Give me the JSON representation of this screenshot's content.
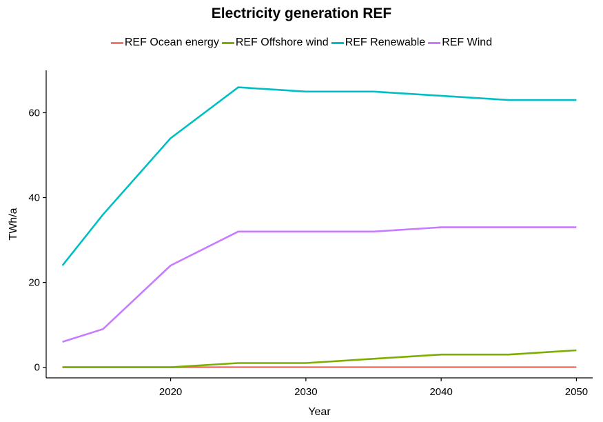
{
  "chart_data": {
    "type": "line",
    "title": "Electricity generation REF",
    "xlabel": "Year",
    "ylabel": "TWh/a",
    "x": [
      2012,
      2015,
      2020,
      2025,
      2030,
      2035,
      2040,
      2045,
      2050
    ],
    "xlim": [
      2010.8,
      2051.2
    ],
    "ylim": [
      -2.5,
      70
    ],
    "xticks": [
      2020,
      2030,
      2040,
      2050
    ],
    "yticks": [
      0,
      20,
      40,
      60
    ],
    "grid": false,
    "legend_position": "top",
    "series": [
      {
        "name": "REF Ocean energy",
        "color": "#F8766D",
        "values": [
          0,
          0,
          0,
          0,
          0,
          0,
          0,
          0,
          0
        ]
      },
      {
        "name": "REF Offshore wind",
        "color": "#7CAE00",
        "values": [
          0,
          0,
          0,
          1,
          1,
          2,
          3,
          3,
          4
        ]
      },
      {
        "name": "REF Renewable",
        "color": "#00BFC4",
        "values": [
          24,
          36,
          54,
          66,
          65,
          65,
          64,
          63,
          63
        ]
      },
      {
        "name": "REF Wind",
        "color": "#C77CFF",
        "values": [
          6,
          9,
          24,
          32,
          32,
          32,
          33,
          33,
          33
        ]
      }
    ]
  }
}
